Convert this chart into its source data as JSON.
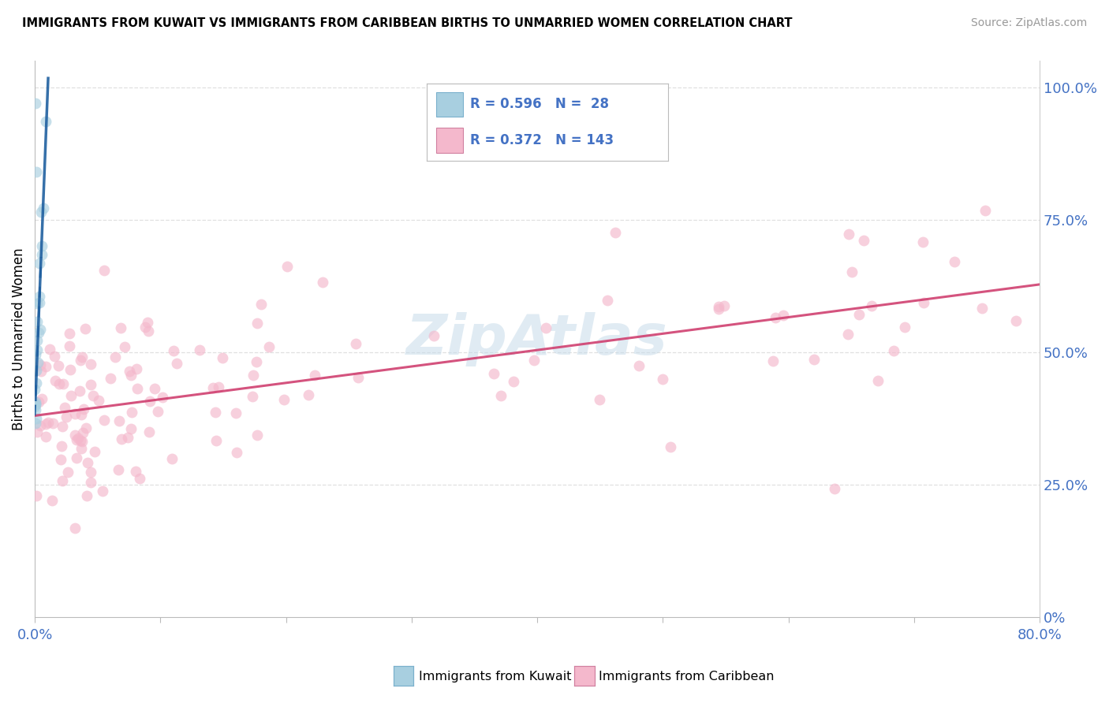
{
  "title": "IMMIGRANTS FROM KUWAIT VS IMMIGRANTS FROM CARIBBEAN BIRTHS TO UNMARRIED WOMEN CORRELATION CHART",
  "source": "Source: ZipAtlas.com",
  "ylabel": "Births to Unmarried Women",
  "kuwait_color": "#a8cfe0",
  "caribbean_color": "#f4b8cc",
  "kuwait_trend_color": "#2060a0",
  "caribbean_trend_color": "#d04070",
  "legend_r_color": "#4472c4",
  "grid_color": "#e0e0e0",
  "bg_color": "#ffffff",
  "xlim": [
    0.0,
    0.8
  ],
  "ylim": [
    0.0,
    1.05
  ],
  "scatter_size": 100,
  "scatter_alpha": 0.65,
  "carib_intercept": 0.38,
  "carib_slope": 0.31,
  "kuw_intercept": 0.38,
  "kuw_slope": 60.0,
  "watermark_text": "ZipAtlas",
  "watermark_color": "#c8dcea",
  "watermark_alpha": 0.55,
  "watermark_fontsize": 52
}
